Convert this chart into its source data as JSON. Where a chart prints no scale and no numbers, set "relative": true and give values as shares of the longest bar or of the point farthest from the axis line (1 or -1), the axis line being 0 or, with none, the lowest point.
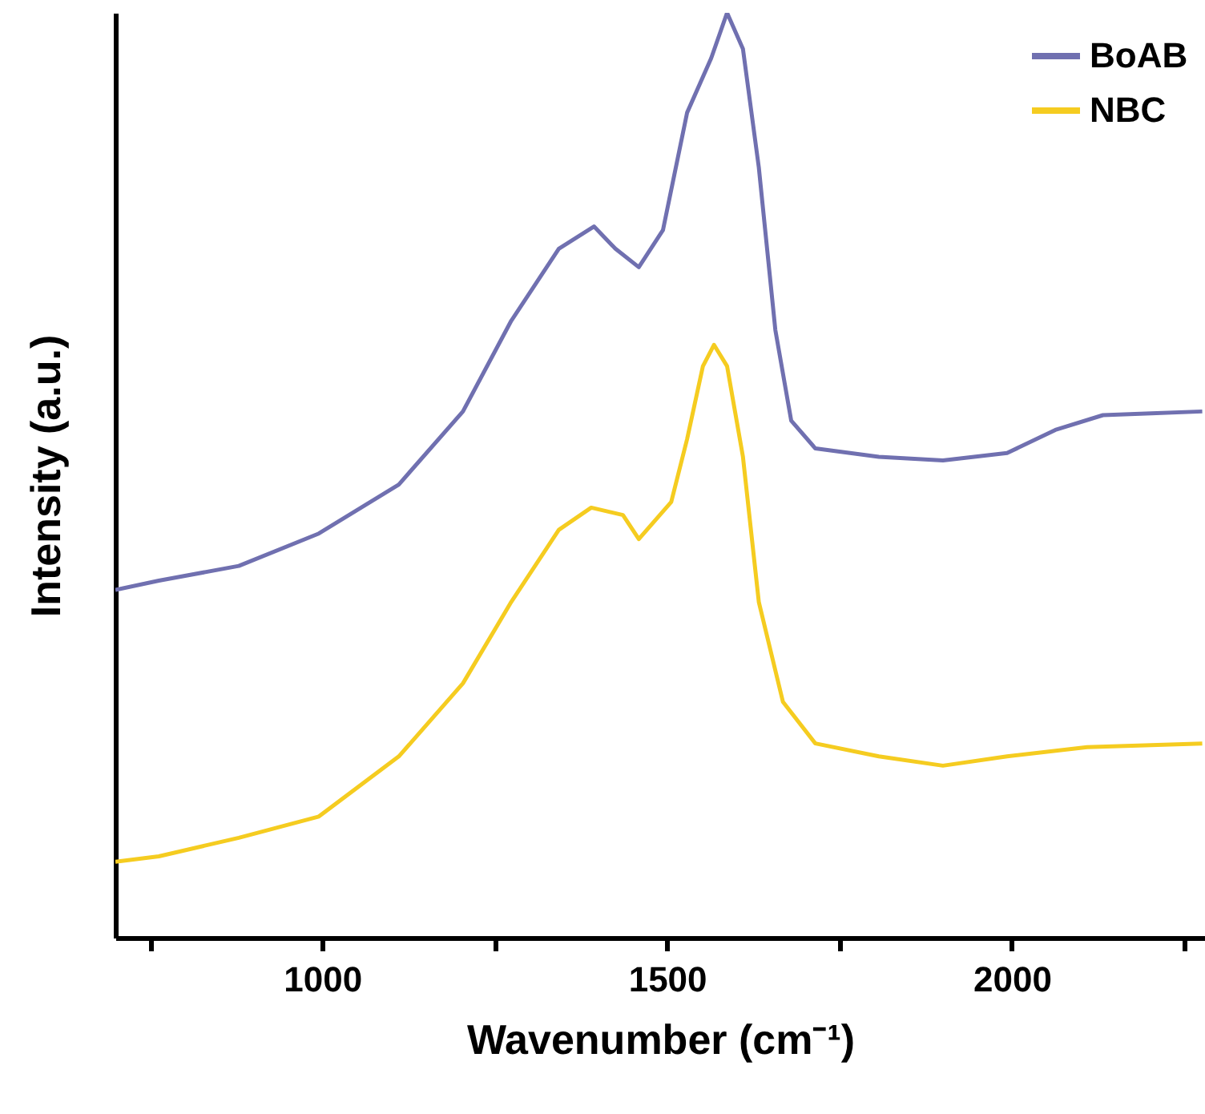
{
  "chart_data": {
    "type": "line",
    "relative": true,
    "xlabel": "Wavenumber (cm⁻¹)",
    "ylabel": "Intensity (a.u.)",
    "xlim": [
      700,
      2280
    ],
    "xticks": [
      {
        "value": 750,
        "label": null
      },
      1000,
      {
        "value": 1250,
        "label": null
      },
      1500,
      {
        "value": 1750,
        "label": null
      },
      2000,
      {
        "value": 2250,
        "label": null
      }
    ],
    "legend": "top right",
    "grid": false,
    "line_style": "solid",
    "series": [
      {
        "name": "BoAB",
        "color": "#7070b0",
        "x": [
          700,
          763,
          879,
          995,
          1111,
          1204,
          1274,
          1343,
          1394,
          1425,
          1459,
          1494,
          1529,
          1564,
          1587,
          1610,
          1633,
          1657,
          1680,
          1715,
          1807,
          1900,
          1993,
          2063,
          2132,
          2202,
          2276
        ],
        "values": [
          0.376,
          0.386,
          0.402,
          0.437,
          0.49,
          0.569,
          0.667,
          0.745,
          0.769,
          0.745,
          0.725,
          0.765,
          0.892,
          0.951,
          1.0,
          0.961,
          0.833,
          0.657,
          0.559,
          0.529,
          0.52,
          0.516,
          0.524,
          0.549,
          0.565,
          0.567,
          0.569
        ]
      },
      {
        "name": "NBC",
        "color": "#f5cc20",
        "x": [
          700,
          763,
          879,
          995,
          1111,
          1204,
          1274,
          1343,
          1390,
          1436,
          1459,
          1506,
          1529,
          1552,
          1568,
          1587,
          1610,
          1633,
          1668,
          1715,
          1807,
          1900,
          1993,
          2109,
          2276
        ],
        "values": [
          0.082,
          0.088,
          0.108,
          0.131,
          0.196,
          0.275,
          0.363,
          0.441,
          0.465,
          0.457,
          0.431,
          0.471,
          0.539,
          0.618,
          0.641,
          0.618,
          0.52,
          0.363,
          0.255,
          0.21,
          0.196,
          0.186,
          0.196,
          0.206,
          0.21
        ]
      }
    ]
  }
}
